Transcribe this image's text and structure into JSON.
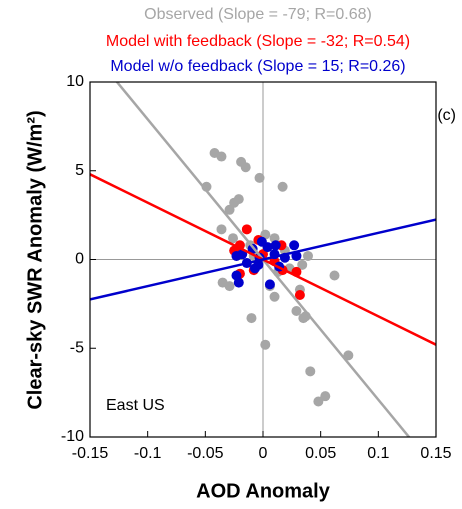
{
  "chart_data": {
    "type": "scatter",
    "xlabel": "AOD Anomaly",
    "ylabel": "Clear-sky SWR Anomaly (W/m²)",
    "annotations": [
      "(c)",
      "East US"
    ],
    "xlim": [
      -0.15,
      0.15
    ],
    "xticks": [
      -0.15,
      -0.1,
      -0.05,
      0,
      0.05,
      0.1,
      0.15
    ],
    "ylim": [
      -10,
      10
    ],
    "yticks": [
      -10,
      -5,
      0,
      5,
      10
    ],
    "series": [
      {
        "name": "Observed (Slope = -79; R=0.68)",
        "color": "#a6a6a6",
        "fit_slope": -79,
        "x": [
          -0.042,
          -0.036,
          -0.049,
          -0.019,
          -0.015,
          -0.003,
          0.017,
          -0.025,
          -0.021,
          -0.029,
          -0.036,
          -0.026,
          0.002,
          0.01,
          -0.011,
          0.019,
          0.039,
          0.034,
          0.023,
          -0.029,
          -0.035,
          0.006,
          0.01,
          0.032,
          0.062,
          0.029,
          0.035,
          -0.01,
          0.002,
          0.041,
          0.074,
          0.054,
          0.048,
          0.037,
          -0.008,
          0.013
        ],
        "y": [
          6.0,
          5.8,
          4.1,
          5.5,
          5.2,
          4.6,
          4.1,
          3.2,
          3.4,
          2.8,
          1.7,
          1.2,
          1.4,
          1.2,
          0.8,
          0.5,
          0.2,
          -0.3,
          -0.5,
          -1.5,
          -1.3,
          -1.5,
          -2.1,
          -1.7,
          -0.9,
          -2.9,
          -3.3,
          -3.3,
          -4.8,
          -6.3,
          -5.4,
          -7.7,
          -8.0,
          -3.2,
          0.2,
          -0.7
        ]
      },
      {
        "name": "Model with feedback (Slope = -32; R=0.54)",
        "color": "#ff0000",
        "fit_slope": -32,
        "x": [
          -0.014,
          -0.02,
          -0.025,
          -0.004,
          0.016,
          0,
          0.01,
          0.029,
          0.032,
          -0.008,
          -0.02,
          0.017
        ],
        "y": [
          1.7,
          0.8,
          0.5,
          1.1,
          0.8,
          0.3,
          -0.1,
          -0.7,
          -2.0,
          -0.6,
          -0.8,
          -0.6
        ]
      },
      {
        "name": "Model w/o feedback (Slope = 15; R=0.26)",
        "color": "#0000cc",
        "fit_slope": 15,
        "x": [
          -0.023,
          -0.018,
          -0.023,
          -0.021,
          -0.014,
          -0.009,
          -0.004,
          -0.001,
          0.004,
          0.01,
          0.011,
          0.014,
          0.027,
          0.029,
          0.006,
          -0.007,
          -0.003,
          0.019
        ],
        "y": [
          0.2,
          0.3,
          -0.9,
          -1.3,
          -0.2,
          0.6,
          -0.3,
          1.0,
          0.7,
          0.3,
          0.8,
          -0.4,
          0.8,
          0.2,
          -1.4,
          -0.5,
          0.1,
          0.1
        ]
      }
    ]
  }
}
